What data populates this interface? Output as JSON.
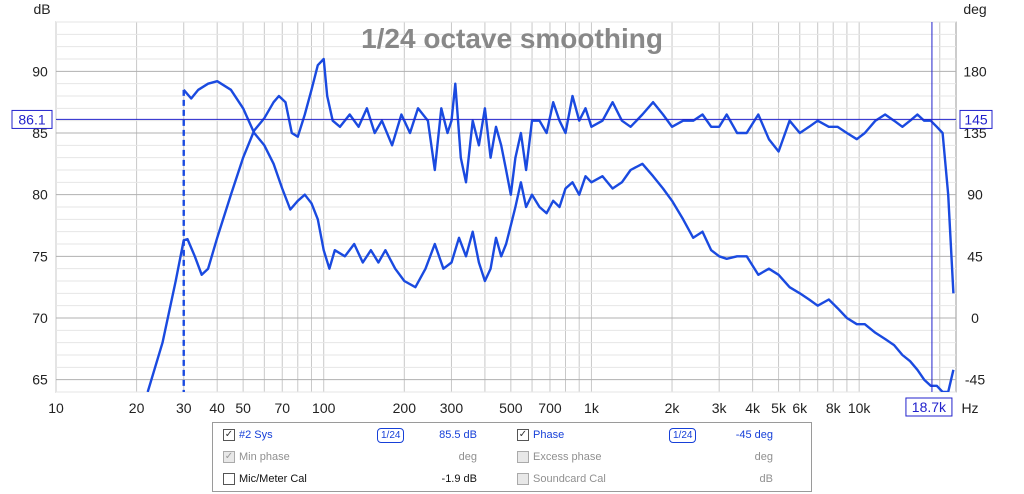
{
  "chart_data": {
    "type": "line",
    "title": "1/24 octave smoothing",
    "x_axis": {
      "scale": "log",
      "range": [
        10,
        23000
      ],
      "unit_label": "Hz",
      "ticks": [
        {
          "v": 10,
          "label": "10"
        },
        {
          "v": 20,
          "label": "20"
        },
        {
          "v": 30,
          "label": "30"
        },
        {
          "v": 40,
          "label": "40"
        },
        {
          "v": 50,
          "label": "50"
        },
        {
          "v": 70,
          "label": "70"
        },
        {
          "v": 100,
          "label": "100"
        },
        {
          "v": 200,
          "label": "200"
        },
        {
          "v": 300,
          "label": "300"
        },
        {
          "v": 500,
          "label": "500"
        },
        {
          "v": 700,
          "label": "700"
        },
        {
          "v": 1000,
          "label": "1k"
        },
        {
          "v": 2000,
          "label": "2k"
        },
        {
          "v": 3000,
          "label": "3k"
        },
        {
          "v": 4000,
          "label": "4k"
        },
        {
          "v": 5000,
          "label": "5k"
        },
        {
          "v": 6000,
          "label": "6k"
        },
        {
          "v": 8000,
          "label": "8k"
        },
        {
          "v": 10000,
          "label": "10k"
        },
        {
          "v": 20000,
          "label": "k"
        }
      ]
    },
    "y_left": {
      "unit_label": "dB",
      "range": [
        64,
        94
      ],
      "ticks": [
        {
          "v": 65,
          "label": "65"
        },
        {
          "v": 70,
          "label": "70"
        },
        {
          "v": 75,
          "label": "75"
        },
        {
          "v": 80,
          "label": "80"
        },
        {
          "v": 85,
          "label": "85"
        },
        {
          "v": 90,
          "label": "90"
        }
      ]
    },
    "y_right": {
      "unit_label": "deg",
      "ticks": [
        {
          "v": -45,
          "label": "-45"
        },
        {
          "v": 0,
          "label": "0"
        },
        {
          "v": 45,
          "label": "45"
        },
        {
          "v": 90,
          "label": "90"
        },
        {
          "v": 135,
          "label": "135"
        },
        {
          "v": 180,
          "label": "180"
        }
      ]
    },
    "grid": true,
    "cursor": {
      "x_label": "18.7k",
      "x_value": 18700,
      "y_label_left": "86.1",
      "y_value": 86.1,
      "y_label_right": "145"
    },
    "series": [
      {
        "name": "#2 Sys",
        "axis": "left",
        "color": "#1a4ae0",
        "points": [
          [
            22,
            64
          ],
          [
            25,
            68
          ],
          [
            28,
            73
          ],
          [
            30,
            76.3
          ],
          [
            31,
            76.4
          ],
          [
            33,
            75
          ],
          [
            35,
            73.5
          ],
          [
            37,
            74
          ],
          [
            40,
            76.5
          ],
          [
            45,
            80
          ],
          [
            50,
            83
          ],
          [
            55,
            85.2
          ],
          [
            60,
            86.2
          ],
          [
            65,
            87.5
          ],
          [
            68,
            88
          ],
          [
            72,
            87.5
          ],
          [
            76,
            85
          ],
          [
            80,
            84.7
          ],
          [
            85,
            86.5
          ],
          [
            90,
            88.5
          ],
          [
            95,
            90.5
          ],
          [
            100,
            91
          ],
          [
            103,
            88
          ],
          [
            108,
            86
          ],
          [
            115,
            85.5
          ],
          [
            125,
            86.5
          ],
          [
            135,
            85.5
          ],
          [
            145,
            87
          ],
          [
            155,
            85
          ],
          [
            165,
            86
          ],
          [
            180,
            84
          ],
          [
            195,
            86.5
          ],
          [
            210,
            85
          ],
          [
            225,
            87
          ],
          [
            245,
            86
          ],
          [
            260,
            82
          ],
          [
            275,
            87
          ],
          [
            290,
            85
          ],
          [
            300,
            86
          ],
          [
            310,
            89
          ],
          [
            325,
            83
          ],
          [
            340,
            81
          ],
          [
            360,
            86
          ],
          [
            380,
            84
          ],
          [
            400,
            87
          ],
          [
            420,
            83
          ],
          [
            440,
            85.5
          ],
          [
            460,
            84
          ],
          [
            480,
            82
          ],
          [
            500,
            80
          ],
          [
            520,
            83
          ],
          [
            545,
            85
          ],
          [
            570,
            82
          ],
          [
            600,
            86
          ],
          [
            640,
            86
          ],
          [
            680,
            85
          ],
          [
            720,
            87.5
          ],
          [
            760,
            86
          ],
          [
            800,
            85
          ],
          [
            850,
            88
          ],
          [
            900,
            86
          ],
          [
            950,
            87
          ],
          [
            1000,
            85.5
          ],
          [
            1100,
            86
          ],
          [
            1200,
            87.5
          ],
          [
            1300,
            86
          ],
          [
            1400,
            85.5
          ],
          [
            1550,
            86.5
          ],
          [
            1700,
            87.5
          ],
          [
            1850,
            86.5
          ],
          [
            2000,
            85.5
          ],
          [
            2200,
            86
          ],
          [
            2400,
            86
          ],
          [
            2600,
            86.5
          ],
          [
            2800,
            85.5
          ],
          [
            3000,
            85.5
          ],
          [
            3200,
            86.5
          ],
          [
            3500,
            85
          ],
          [
            3800,
            85
          ],
          [
            4200,
            86.5
          ],
          [
            4600,
            84.5
          ],
          [
            5000,
            83.5
          ],
          [
            5500,
            86
          ],
          [
            6000,
            85
          ],
          [
            6500,
            85.5
          ],
          [
            7000,
            86
          ],
          [
            7700,
            85.5
          ],
          [
            8300,
            85.5
          ],
          [
            9000,
            85
          ],
          [
            9800,
            84.5
          ],
          [
            10500,
            85
          ],
          [
            11500,
            86
          ],
          [
            12500,
            86.5
          ],
          [
            13500,
            86
          ],
          [
            14500,
            85.5
          ],
          [
            15500,
            86
          ],
          [
            16500,
            86.5
          ],
          [
            17500,
            86
          ],
          [
            18500,
            86
          ],
          [
            19500,
            85.5
          ],
          [
            20500,
            85
          ],
          [
            21500,
            80
          ],
          [
            22500,
            72
          ]
        ]
      },
      {
        "name": "Phase",
        "axis": "left",
        "color": "#1a4ae0",
        "points": [
          [
            30,
            88.5
          ],
          [
            32,
            87.8
          ],
          [
            34,
            88.5
          ],
          [
            37,
            89
          ],
          [
            40,
            89.2
          ],
          [
            45,
            88.5
          ],
          [
            50,
            87
          ],
          [
            55,
            85
          ],
          [
            60,
            84
          ],
          [
            65,
            82.5
          ],
          [
            70,
            80.5
          ],
          [
            75,
            78.8
          ],
          [
            80,
            79.5
          ],
          [
            85,
            80
          ],
          [
            90,
            79.3
          ],
          [
            95,
            78
          ],
          [
            100,
            75.5
          ],
          [
            105,
            74
          ],
          [
            110,
            75.5
          ],
          [
            120,
            75
          ],
          [
            130,
            76
          ],
          [
            140,
            74.5
          ],
          [
            150,
            75.5
          ],
          [
            160,
            74.5
          ],
          [
            170,
            75.5
          ],
          [
            185,
            74
          ],
          [
            200,
            73
          ],
          [
            220,
            72.5
          ],
          [
            240,
            74
          ],
          [
            260,
            76
          ],
          [
            280,
            74
          ],
          [
            300,
            74.5
          ],
          [
            320,
            76.5
          ],
          [
            340,
            75
          ],
          [
            360,
            77
          ],
          [
            380,
            74.5
          ],
          [
            400,
            73
          ],
          [
            420,
            74
          ],
          [
            440,
            76.5
          ],
          [
            460,
            75
          ],
          [
            480,
            76
          ],
          [
            500,
            77.5
          ],
          [
            520,
            79
          ],
          [
            545,
            81
          ],
          [
            570,
            79
          ],
          [
            600,
            80
          ],
          [
            640,
            79
          ],
          [
            680,
            78.5
          ],
          [
            720,
            79.5
          ],
          [
            760,
            79
          ],
          [
            800,
            80.5
          ],
          [
            850,
            81
          ],
          [
            900,
            80
          ],
          [
            950,
            81.5
          ],
          [
            1000,
            81
          ],
          [
            1100,
            81.5
          ],
          [
            1200,
            80.5
          ],
          [
            1300,
            81
          ],
          [
            1400,
            82
          ],
          [
            1550,
            82.5
          ],
          [
            1700,
            81.5
          ],
          [
            1850,
            80.5
          ],
          [
            2000,
            79.5
          ],
          [
            2200,
            78
          ],
          [
            2400,
            76.5
          ],
          [
            2600,
            77
          ],
          [
            2800,
            75.5
          ],
          [
            3000,
            75
          ],
          [
            3200,
            74.8
          ],
          [
            3500,
            75
          ],
          [
            3800,
            75
          ],
          [
            4200,
            73.5
          ],
          [
            4600,
            74
          ],
          [
            5000,
            73.5
          ],
          [
            5500,
            72.5
          ],
          [
            6000,
            72
          ],
          [
            6500,
            71.5
          ],
          [
            7000,
            71
          ],
          [
            7700,
            71.5
          ],
          [
            8300,
            70.8
          ],
          [
            9000,
            70
          ],
          [
            9800,
            69.5
          ],
          [
            10500,
            69.5
          ],
          [
            11500,
            68.8
          ],
          [
            12500,
            68.3
          ],
          [
            13500,
            67.8
          ],
          [
            14500,
            67
          ],
          [
            15500,
            66.5
          ],
          [
            16500,
            65.8
          ],
          [
            17500,
            65
          ],
          [
            18500,
            64.5
          ],
          [
            19500,
            64.5
          ],
          [
            20500,
            64
          ],
          [
            21500,
            64
          ],
          [
            22500,
            65.8
          ]
        ]
      }
    ],
    "reference_line": {
      "x_value": 30
    }
  },
  "legend": {
    "rows": [
      {
        "check": true,
        "dim": false,
        "label": "#2 Sys",
        "style": "blue",
        "badge": "1/24",
        "value": "85.5 dB",
        "value_style": "blue",
        "check2": true,
        "dim2": false,
        "label2": "Phase",
        "style2": "blue",
        "badge2": "1/24",
        "value2": "-45 deg",
        "value2_style": "blue"
      },
      {
        "check": true,
        "dim": true,
        "label": "Min phase",
        "style": "gray",
        "badge": "",
        "value": "deg",
        "value_style": "gray",
        "check2": false,
        "dim2": true,
        "label2": "Excess phase",
        "style2": "gray",
        "badge2": "",
        "value2": "deg",
        "value2_style": "gray"
      },
      {
        "check": false,
        "dim": false,
        "label": "Mic/Meter Cal",
        "style": "black",
        "badge": "",
        "value": "-1.9 dB",
        "value_style": "black",
        "check2": false,
        "dim2": true,
        "label2": "Soundcard Cal",
        "style2": "gray",
        "badge2": "",
        "value2": "dB",
        "value2_style": "gray"
      }
    ],
    "check_mark": "✓"
  },
  "colors": {
    "line": "#1a4ae0",
    "grid": "#c8c8c8",
    "axis_text": "#222222",
    "title": "#888888",
    "cursor": "#2222cc"
  }
}
